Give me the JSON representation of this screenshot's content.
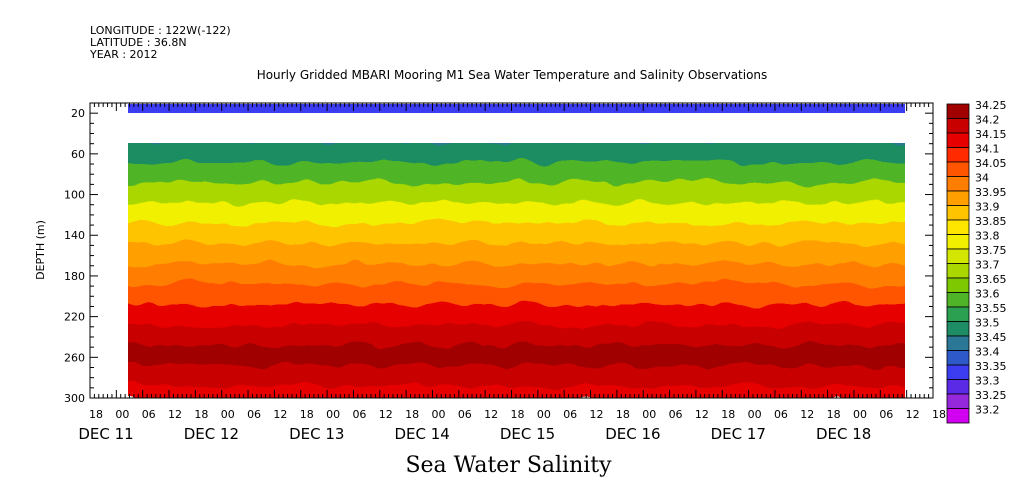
{
  "header": {
    "longitude": "LONGITUDE : 122W(-122)",
    "latitude": "LATITUDE : 36.8N",
    "year": "YEAR : 2012"
  },
  "chart_data": {
    "type": "heatmap",
    "title": "Hourly Gridded MBARI Mooring M1 Sea Water Temperature and Salinity Observations",
    "xlabel": "Sea Water Salinity",
    "ylabel": "DEPTH (m)",
    "ylim": [
      300,
      10
    ],
    "yticks": [
      20,
      60,
      100,
      140,
      180,
      220,
      260,
      300
    ],
    "xticks_hour": [
      "18",
      "00",
      "06",
      "12",
      "18",
      "00",
      "06",
      "12",
      "18",
      "00",
      "06",
      "12",
      "18",
      "00",
      "06",
      "12",
      "18",
      "00",
      "06",
      "12",
      "18",
      "00",
      "06",
      "12",
      "18",
      "00",
      "06",
      "12",
      "18",
      "00",
      "06",
      "12",
      "18"
    ],
    "xticks_date": [
      "DEC 11",
      "DEC 12",
      "DEC 13",
      "DEC 14",
      "DEC 15",
      "DEC 16",
      "DEC 17",
      "DEC 18"
    ],
    "colorbar": {
      "levels": [
        "34.25",
        "34.2",
        "34.15",
        "34.1",
        "34.05",
        "34",
        "33.95",
        "33.9",
        "33.85",
        "33.8",
        "33.75",
        "33.7",
        "33.65",
        "33.6",
        "33.55",
        "33.5",
        "33.45",
        "33.4",
        "33.35",
        "33.3",
        "33.25",
        "33.2"
      ],
      "colors": [
        "#a00000",
        "#c80000",
        "#e60000",
        "#ff2a00",
        "#ff5500",
        "#ff7d00",
        "#ffa000",
        "#ffc400",
        "#ffe600",
        "#f0f000",
        "#d2e600",
        "#aad700",
        "#7dc800",
        "#50b428",
        "#2aa050",
        "#1e8c64",
        "#2a7896",
        "#2d5ac8",
        "#3c3cf0",
        "#5a2ae6",
        "#9628dc",
        "#d200f0"
      ]
    },
    "depth_profile": [
      {
        "depth": 10,
        "salinity": 33.35
      },
      {
        "depth": 40,
        "salinity": 33.45
      },
      {
        "depth": 60,
        "salinity": 33.5
      },
      {
        "depth": 80,
        "salinity": 33.6
      },
      {
        "depth": 100,
        "salinity": 33.7
      },
      {
        "depth": 120,
        "salinity": 33.8
      },
      {
        "depth": 140,
        "salinity": 33.9
      },
      {
        "depth": 160,
        "salinity": 33.95
      },
      {
        "depth": 180,
        "salinity": 34.0
      },
      {
        "depth": 200,
        "salinity": 34.05
      },
      {
        "depth": 220,
        "salinity": 34.15
      },
      {
        "depth": 240,
        "salinity": 34.2
      },
      {
        "depth": 260,
        "salinity": 34.25
      },
      {
        "depth": 280,
        "salinity": 34.2
      },
      {
        "depth": 300,
        "salinity": 34.15
      }
    ]
  }
}
